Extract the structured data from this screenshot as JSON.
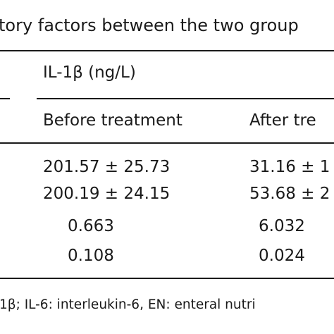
{
  "caption": "tory factors between the two group",
  "table": {
    "group_header": "IL-1β (ng/L)",
    "columns": [
      "Before treatment",
      "After tre"
    ],
    "rows": [
      [
        "201.57 ± 25.73",
        "31.16 ± 1"
      ],
      [
        "200.19 ± 24.15",
        "53.68 ± 2"
      ],
      [
        "0.663",
        "6.032"
      ],
      [
        "0.108",
        "0.024"
      ]
    ]
  },
  "footnote": "1β; IL-6: interleukin-6, EN: enteral nutri"
}
